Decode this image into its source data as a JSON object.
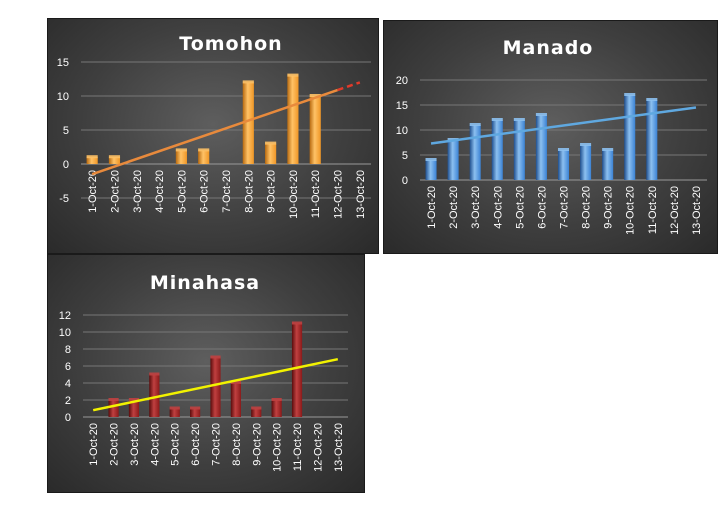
{
  "chart_data": [
    {
      "type": "bar",
      "title": "Tomohon",
      "categories": [
        "1-Oct-20",
        "2-Oct-20",
        "3-Oct-20",
        "4-Oct-20",
        "5-Oct-20",
        "6-Oct-20",
        "7-Oct-20",
        "8-Oct-20",
        "9-Oct-20",
        "10-Oct-20",
        "11-Oct-20",
        "12-Oct-20",
        "13-Oct-20"
      ],
      "values": [
        1,
        1,
        0,
        0,
        2,
        2,
        0,
        12,
        3,
        13,
        10,
        null,
        null
      ],
      "yticks": [
        "15",
        "10",
        "5",
        "0",
        "-5"
      ],
      "ylim": [
        -8,
        16
      ],
      "trendline": {
        "start": -1.5,
        "end": 12,
        "forecast_from": 11
      },
      "colors": {
        "bar": "#ef9626",
        "bar_light": "#ffc266",
        "bar_dark": "#b86a10",
        "trend": "#e88a3c",
        "forecast": "#e03a2a"
      },
      "xlabel": "",
      "ylabel": ""
    },
    {
      "type": "bar",
      "title": "Manado",
      "categories": [
        "1-Oct-20",
        "2-Oct-20",
        "3-Oct-20",
        "4-Oct-20",
        "5-Oct-20",
        "6-Oct-20",
        "7-Oct-20",
        "8-Oct-20",
        "9-Oct-20",
        "10-Oct-20",
        "11-Oct-20",
        "12-Oct-20",
        "13-Oct-20"
      ],
      "values": [
        4,
        8,
        11,
        12,
        12,
        13,
        6,
        7,
        6,
        17,
        16,
        null,
        null
      ],
      "yticks": [
        "20",
        "15",
        "10",
        "5",
        "0"
      ],
      "ylim": [
        0,
        22
      ],
      "trendline": {
        "start": 7.3,
        "end": 14.5
      },
      "colors": {
        "bar": "#3b82d4",
        "bar_light": "#8cc0f0",
        "bar_dark": "#1f4f8f",
        "trend": "#5fa8e0"
      },
      "xlabel": "",
      "ylabel": ""
    },
    {
      "type": "bar",
      "title": "Minahasa",
      "categories": [
        "1-Oct-20",
        "2-Oct-20",
        "3-Oct-20",
        "4-Oct-20",
        "5-Oct-20",
        "6-Oct-20",
        "7-Oct-20",
        "8-Oct-20",
        "9-Oct-20",
        "10-Oct-20",
        "11-Oct-20",
        "12-Oct-20",
        "13-Oct-20"
      ],
      "values": [
        0,
        2,
        2,
        5,
        1,
        1,
        7,
        4,
        1,
        2,
        11,
        null,
        null
      ],
      "yticks": [
        "12",
        "10",
        "8",
        "6",
        "4",
        "2",
        "0"
      ],
      "ylim": [
        0,
        13
      ],
      "trendline": {
        "start": 0.8,
        "end": 6.8
      },
      "colors": {
        "bar": "#8b1a1a",
        "bar_light": "#c04040",
        "bar_dark": "#5a0c0c",
        "trend": "#f2f200"
      },
      "xlabel": "",
      "ylabel": ""
    }
  ]
}
